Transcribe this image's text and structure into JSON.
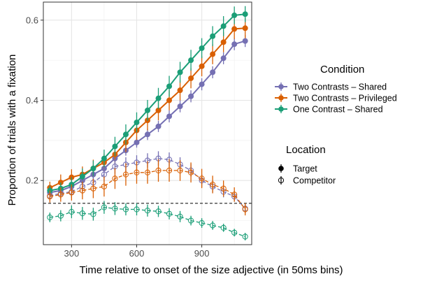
{
  "chart_data": {
    "type": "line",
    "xlabel": "Time relative to onset of the size adjective (in 50ms bins)",
    "ylabel": "Proportion of trials with a fixation",
    "xlim": [
      170,
      1130
    ],
    "ylim": [
      0.04,
      0.645
    ],
    "x_ticks": [
      300,
      600,
      900
    ],
    "x_tick_labels": [
      "300",
      "600",
      "900"
    ],
    "y_ticks": [
      0.2,
      0.4,
      0.6
    ],
    "y_tick_labels": [
      "0.2",
      "0.4",
      "0.6"
    ],
    "grid": true,
    "reference_line_y": 0.143,
    "legend_placement": "right",
    "legend_condition_title": "Condition",
    "legend_location_title": "Location",
    "location_labels": [
      "Target",
      "Competitor"
    ],
    "colors": {
      "Two Contrasts – Shared": "#7570b3",
      "Two Contrasts – Privileged": "#d95f02",
      "One Contrast – Shared": "#1b9e77"
    },
    "x": [
      200,
      250,
      300,
      350,
      400,
      450,
      500,
      550,
      600,
      650,
      700,
      750,
      800,
      850,
      900,
      950,
      1000,
      1050,
      1100
    ],
    "series": [
      {
        "name": "Two Contrasts – Shared",
        "location": "Target",
        "values": [
          0.17,
          0.175,
          0.185,
          0.2,
          0.215,
          0.23,
          0.255,
          0.275,
          0.295,
          0.315,
          0.335,
          0.36,
          0.385,
          0.41,
          0.44,
          0.47,
          0.505,
          0.54,
          0.548
        ],
        "errors": [
          0.01,
          0.01,
          0.01,
          0.01,
          0.012,
          0.012,
          0.012,
          0.013,
          0.013,
          0.014,
          0.014,
          0.015,
          0.015,
          0.015,
          0.015,
          0.015,
          0.015,
          0.015,
          0.015
        ]
      },
      {
        "name": "Two Contrasts – Privileged",
        "location": "Target",
        "values": [
          0.182,
          0.195,
          0.208,
          0.215,
          0.23,
          0.245,
          0.265,
          0.295,
          0.325,
          0.35,
          0.375,
          0.4,
          0.425,
          0.455,
          0.485,
          0.515,
          0.545,
          0.578,
          0.58
        ],
        "errors": [
          0.015,
          0.02,
          0.02,
          0.02,
          0.022,
          0.022,
          0.022,
          0.024,
          0.024,
          0.025,
          0.025,
          0.025,
          0.025,
          0.025,
          0.025,
          0.025,
          0.025,
          0.025,
          0.025
        ]
      },
      {
        "name": "One Contrast – Shared",
        "location": "Target",
        "values": [
          0.175,
          0.18,
          0.19,
          0.21,
          0.23,
          0.255,
          0.285,
          0.315,
          0.345,
          0.375,
          0.405,
          0.435,
          0.47,
          0.5,
          0.53,
          0.56,
          0.585,
          0.612,
          0.615
        ],
        "errors": [
          0.012,
          0.015,
          0.018,
          0.02,
          0.02,
          0.022,
          0.024,
          0.025,
          0.025,
          0.026,
          0.026,
          0.026,
          0.026,
          0.026,
          0.025,
          0.025,
          0.025,
          0.022,
          0.02
        ]
      },
      {
        "name": "Two Contrasts – Shared",
        "location": "Competitor",
        "values": [
          0.162,
          0.168,
          0.172,
          0.185,
          0.195,
          0.215,
          0.235,
          0.24,
          0.245,
          0.25,
          0.255,
          0.252,
          0.24,
          0.225,
          0.2,
          0.185,
          0.172,
          0.16,
          0.13
        ],
        "errors": [
          0.012,
          0.014,
          0.015,
          0.016,
          0.016,
          0.018,
          0.018,
          0.018,
          0.018,
          0.018,
          0.018,
          0.018,
          0.018,
          0.016,
          0.016,
          0.015,
          0.014,
          0.013,
          0.012
        ]
      },
      {
        "name": "Two Contrasts – Privileged",
        "location": "Competitor",
        "values": [
          0.16,
          0.165,
          0.17,
          0.175,
          0.18,
          0.185,
          0.205,
          0.215,
          0.22,
          0.22,
          0.225,
          0.225,
          0.225,
          0.22,
          0.205,
          0.19,
          0.18,
          0.165,
          0.128
        ],
        "errors": [
          0.015,
          0.018,
          0.02,
          0.022,
          0.024,
          0.025,
          0.026,
          0.028,
          0.028,
          0.028,
          0.028,
          0.028,
          0.026,
          0.025,
          0.024,
          0.022,
          0.02,
          0.018,
          0.015
        ]
      },
      {
        "name": "One Contrast – Shared",
        "location": "Competitor",
        "values": [
          0.108,
          0.112,
          0.122,
          0.118,
          0.116,
          0.133,
          0.13,
          0.128,
          0.128,
          0.125,
          0.123,
          0.117,
          0.11,
          0.1,
          0.094,
          0.088,
          0.082,
          0.07,
          0.06
        ],
        "errors": [
          0.012,
          0.014,
          0.016,
          0.016,
          0.016,
          0.016,
          0.016,
          0.015,
          0.015,
          0.015,
          0.014,
          0.014,
          0.014,
          0.012,
          0.012,
          0.011,
          0.01,
          0.009,
          0.008
        ]
      }
    ]
  }
}
